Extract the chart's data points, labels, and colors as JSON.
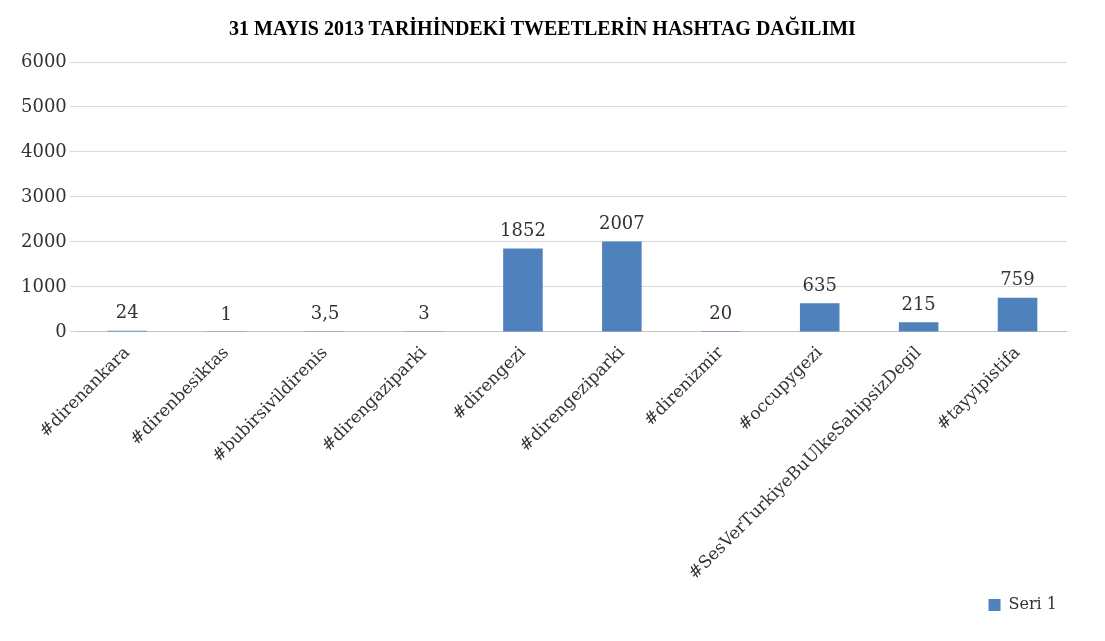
{
  "chart_data": {
    "type": "bar",
    "title": "31 MAYIS 2013 TARİHİNDEKİ TWEETLERİN HASHTAG DAĞILIMI",
    "categories": [
      "#direnankara",
      "#direnbesiktas",
      "#bubirsivildirenis",
      "#direngaziparki",
      "#direngezi",
      "#direngeziparki",
      "#direnizmir",
      "#occupygezi",
      "#SesVerTurkiyeBuUlkeSahipsizDegil",
      "#tayyipistifa"
    ],
    "series": [
      {
        "name": "Seri 1",
        "color": "#4f81bd",
        "values": [
          24,
          1,
          3.5,
          3,
          1852,
          2007,
          20,
          635,
          215,
          759
        ],
        "value_labels": [
          "24",
          "1",
          "3,5",
          "3",
          "1852",
          "2007",
          "20",
          "635",
          "215",
          "759"
        ]
      }
    ],
    "ylim": [
      0,
      6000
    ],
    "yticks": [
      0,
      1000,
      2000,
      3000,
      4000,
      5000,
      6000
    ],
    "grid": "y",
    "legend": "bottom right"
  }
}
